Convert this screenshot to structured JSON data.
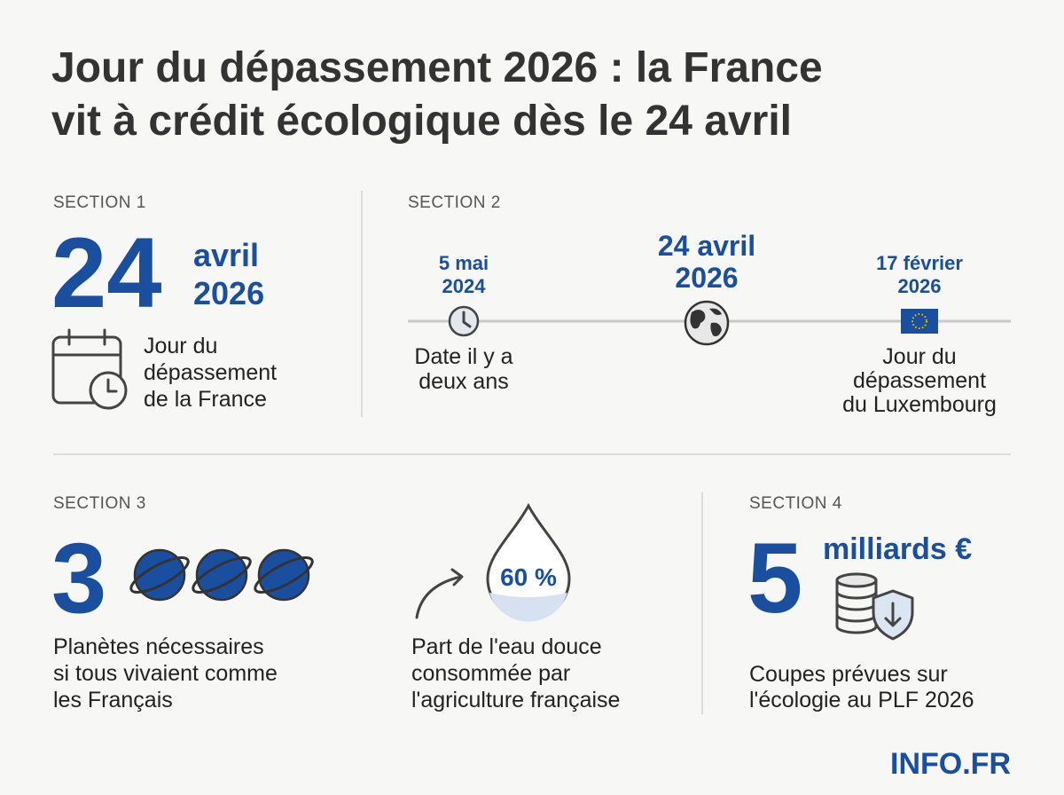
{
  "header": {
    "title_lines": [
      "Jour du dépassement 2026 : la France",
      "vit à crédit écologique dès le 24 avril"
    ]
  },
  "sections": [
    {
      "label": "SECTION 1",
      "big_number": "24",
      "big_unit_lines": [
        "avril",
        "2026"
      ],
      "caption_lines": [
        "Jour du",
        "dépassement",
        "de la France"
      ]
    },
    {
      "label": "SECTION 2",
      "timeline": [
        {
          "date_lines": [
            "5 mai",
            "2024"
          ],
          "caption_lines": [
            "Date il y a",
            "deux ans"
          ]
        },
        {
          "date_lines": [
            "24 avril",
            "2026"
          ]
        },
        {
          "date_lines": [
            "17 février",
            "2026"
          ],
          "caption_lines": [
            "Jour du",
            "dépassement",
            "du Luxembourg"
          ]
        }
      ]
    },
    {
      "label": "SECTION 3",
      "big_number": "3",
      "caption_lines": [
        "Planètes nécessaires",
        "si tous vivaient comme",
        "les Français"
      ],
      "water": {
        "percent": "60 %",
        "caption_lines": [
          "Part de l'eau douce",
          "consommée par",
          "l'agriculture française"
        ]
      }
    },
    {
      "label": "SECTION 4",
      "big_number": "5",
      "unit": "milliards €",
      "caption_lines": [
        "Coupes prévues sur",
        "l'écologie au PLF 2026"
      ]
    }
  ],
  "footer": {
    "brand": "INFO.FR"
  }
}
